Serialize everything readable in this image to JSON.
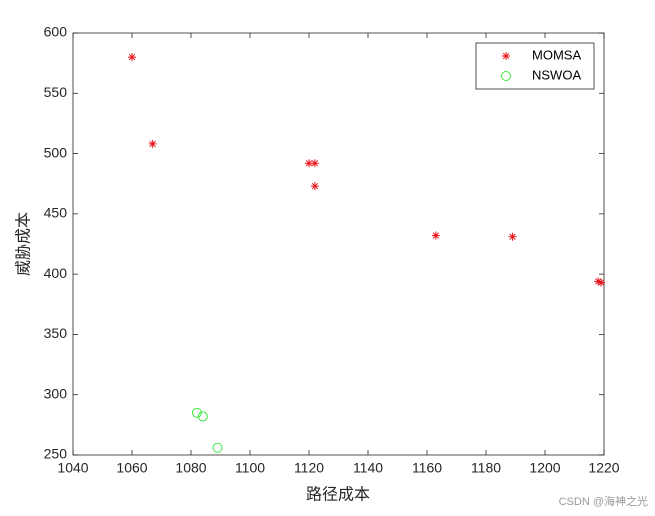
{
  "chart_data": {
    "type": "scatter",
    "xlabel": "路径成本",
    "ylabel": "威胁成本",
    "xlim": [
      1040,
      1220
    ],
    "xticks": [
      1040,
      1060,
      1080,
      1100,
      1120,
      1140,
      1160,
      1180,
      1200,
      1220
    ],
    "ylim": [
      250,
      600
    ],
    "yticks": [
      250,
      300,
      350,
      400,
      450,
      500,
      550,
      600
    ],
    "grid": false,
    "legend": "northeast",
    "series": [
      {
        "name": "MOMSA",
        "color": "#e8141c",
        "marker": "asterisk",
        "x": [
          1060,
          1067,
          1120,
          1122,
          1122,
          1163,
          1189,
          1218,
          1219
        ],
        "values": [
          580,
          508,
          492,
          492,
          473,
          432,
          431,
          394,
          393
        ]
      },
      {
        "name": "NSWOA",
        "color": "#3ee83e",
        "marker": "circle",
        "x": [
          1082,
          1084,
          1089
        ],
        "values": [
          285,
          282,
          256
        ]
      }
    ],
    "watermark": "CSDN @海神之光"
  }
}
